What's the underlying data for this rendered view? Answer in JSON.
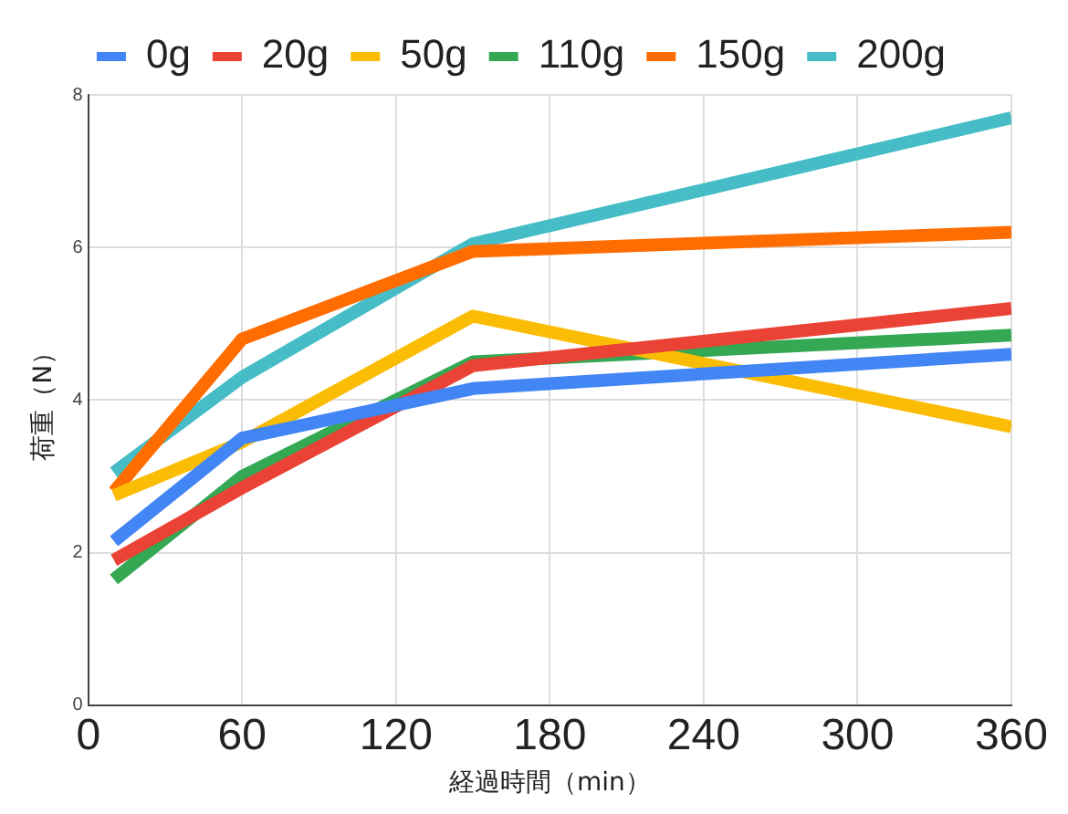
{
  "chart_data": {
    "type": "line",
    "xlabel": "経過時間（min）",
    "ylabel": "荷重（N）",
    "x": [
      10,
      60,
      150,
      360
    ],
    "series": [
      {
        "name": "0g",
        "color": "#4285f4",
        "values": [
          2.15,
          3.5,
          4.15,
          4.6
        ]
      },
      {
        "name": "20g",
        "color": "#ea4335",
        "values": [
          1.9,
          2.85,
          4.45,
          5.2
        ]
      },
      {
        "name": "50g",
        "color": "#fbbc04",
        "values": [
          2.75,
          3.45,
          5.1,
          3.65
        ]
      },
      {
        "name": "110g",
        "color": "#34a853",
        "values": [
          1.65,
          3,
          4.5,
          4.85
        ]
      },
      {
        "name": "150g",
        "color": "#ff6d01",
        "values": [
          2.8,
          4.8,
          5.95,
          6.2
        ]
      },
      {
        "name": "200g",
        "color": "#46bdc6",
        "values": [
          3.05,
          4.3,
          6.05,
          7.7
        ]
      }
    ],
    "xlim": [
      0,
      360
    ],
    "xticks": [
      0,
      60,
      120,
      180,
      240,
      300,
      360
    ],
    "ylim": [
      0,
      8
    ],
    "yticks": [
      0,
      2,
      4,
      6,
      8
    ],
    "grid": true,
    "legend": "top",
    "marker": "none",
    "line_style": "solid"
  }
}
